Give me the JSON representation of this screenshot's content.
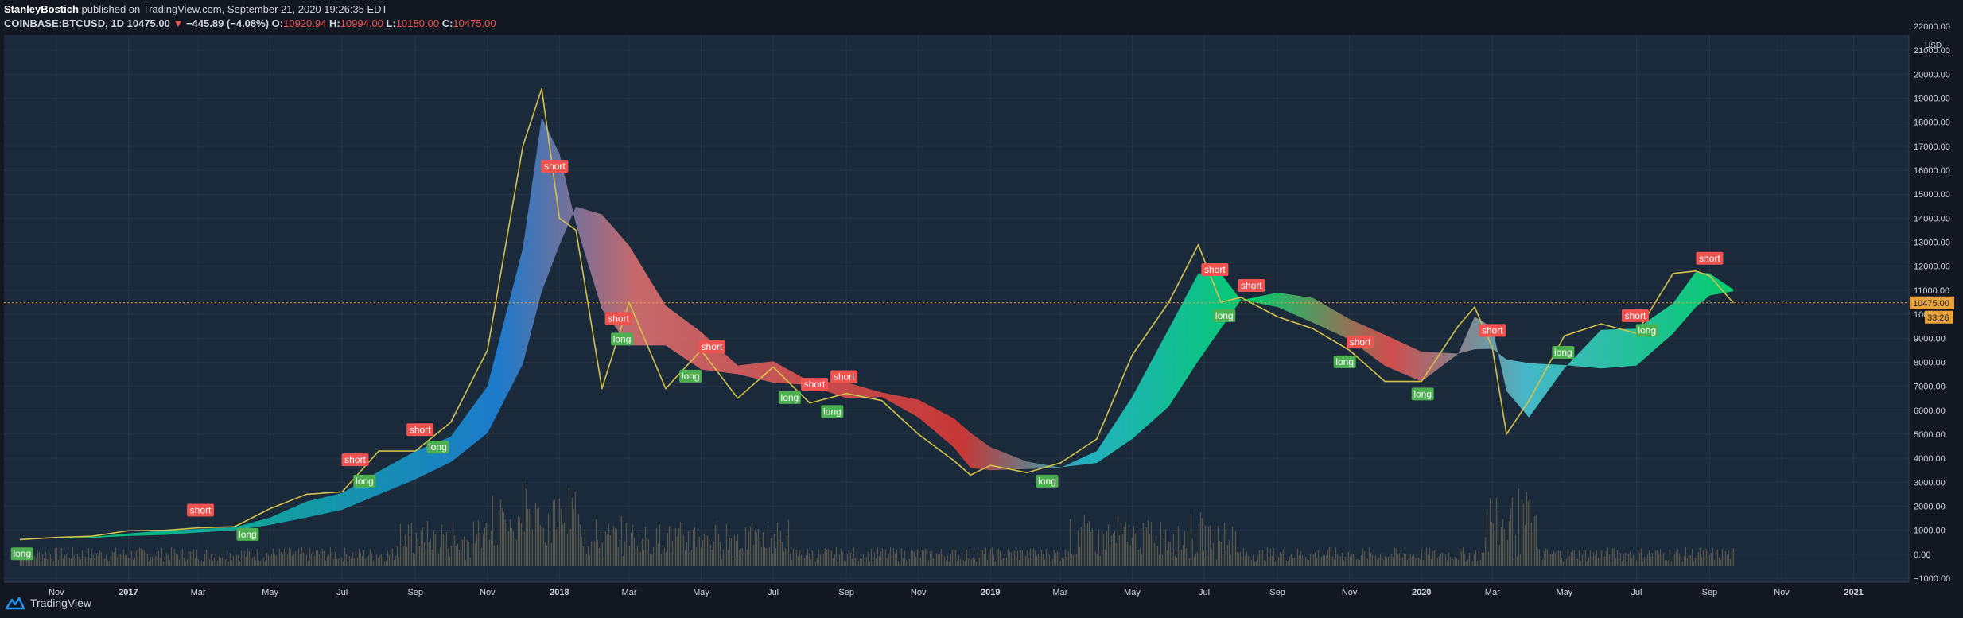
{
  "header": {
    "author": "StanleyBostich",
    "published_text": " published on TradingView.com, September 21, 2020 19:26:35 EDT",
    "symbol": "COINBASE:BTCUSD, 1D",
    "last": "10475.00",
    "change_arrow": "▼",
    "change": "−445.89 (−4.08%)",
    "o_label": "O:",
    "o": "10920.94",
    "h_label": "H:",
    "h": "10994.00",
    "l_label": "L:",
    "l": "10180.00",
    "c_label": "C:",
    "c": "10475.00"
  },
  "price_scale": {
    "currency": "USD",
    "ticks": [
      "22000.00",
      "21000.00",
      "20000.00",
      "19000.00",
      "18000.00",
      "17000.00",
      "16000.00",
      "15000.00",
      "14000.00",
      "13000.00",
      "12000.00",
      "11000.00",
      "10000.00",
      "9000.00",
      "8000.00",
      "7000.00",
      "6000.00",
      "5000.00",
      "4000.00",
      "3000.00",
      "2000.00",
      "1000.00",
      "0.00",
      "−1000.00"
    ],
    "last_price_label": "10475.00",
    "countdown": "33:26"
  },
  "time_scale": {
    "ticks": [
      {
        "label": "Nov",
        "bold": false
      },
      {
        "label": "2017",
        "bold": true
      },
      {
        "label": "Mar",
        "bold": false
      },
      {
        "label": "May",
        "bold": false
      },
      {
        "label": "Jul",
        "bold": false
      },
      {
        "label": "Sep",
        "bold": false
      },
      {
        "label": "Nov",
        "bold": false
      },
      {
        "label": "2018",
        "bold": true
      },
      {
        "label": "Mar",
        "bold": false
      },
      {
        "label": "May",
        "bold": false
      },
      {
        "label": "Jul",
        "bold": false
      },
      {
        "label": "Sep",
        "bold": false
      },
      {
        "label": "Nov",
        "bold": false
      },
      {
        "label": "2019",
        "bold": true
      },
      {
        "label": "Mar",
        "bold": false
      },
      {
        "label": "May",
        "bold": false
      },
      {
        "label": "Jul",
        "bold": false
      },
      {
        "label": "Sep",
        "bold": false
      },
      {
        "label": "Nov",
        "bold": false
      },
      {
        "label": "2020",
        "bold": true
      },
      {
        "label": "Mar",
        "bold": false
      },
      {
        "label": "May",
        "bold": false
      },
      {
        "label": "Jul",
        "bold": false
      },
      {
        "label": "Sep",
        "bold": false
      },
      {
        "label": "Nov",
        "bold": false
      },
      {
        "label": "2021",
        "bold": true
      }
    ]
  },
  "footer": {
    "brand": "TradingView"
  },
  "colors": {
    "background": "#131722",
    "pane": "#1a2a3a",
    "grid": "#243548",
    "text": "#d1d4dc",
    "down": "#ef5350",
    "up": "#26a69a",
    "short": "#ef5350",
    "long": "#4caf50",
    "price_line": "#e8a33d",
    "volume": "#8b7d5a",
    "ribbon_fast": "#2ecc71",
    "ribbon_slow": "#1e88e5"
  },
  "chart_data": {
    "type": "line",
    "title": "",
    "xlabel": "",
    "ylabel": "USD",
    "ylim": [
      -1000,
      22000
    ],
    "grid": true,
    "x_dates": [
      "2016-10-01",
      "2016-11-01",
      "2016-12-01",
      "2017-01-01",
      "2017-02-01",
      "2017-03-01",
      "2017-04-01",
      "2017-05-01",
      "2017-06-01",
      "2017-07-01",
      "2017-08-01",
      "2017-09-01",
      "2017-10-01",
      "2017-11-01",
      "2017-12-01",
      "2017-12-17",
      "2018-01-01",
      "2018-01-15",
      "2018-02-06",
      "2018-03-01",
      "2018-04-01",
      "2018-05-01",
      "2018-06-01",
      "2018-07-01",
      "2018-08-01",
      "2018-09-01",
      "2018-10-01",
      "2018-11-01",
      "2018-12-01",
      "2018-12-15",
      "2019-01-01",
      "2019-02-01",
      "2019-03-01",
      "2019-04-01",
      "2019-05-01",
      "2019-06-01",
      "2019-06-26",
      "2019-07-15",
      "2019-08-01",
      "2019-09-01",
      "2019-10-01",
      "2019-11-01",
      "2019-12-01",
      "2020-01-01",
      "2020-02-01",
      "2020-02-15",
      "2020-03-01",
      "2020-03-13",
      "2020-04-01",
      "2020-05-01",
      "2020-06-01",
      "2020-07-01",
      "2020-08-01",
      "2020-08-20",
      "2020-09-01",
      "2020-09-21"
    ],
    "series": [
      {
        "values": [
          610,
          700,
          750,
          980,
          1000,
          1100,
          1150,
          1900,
          2500,
          2600,
          4300,
          4300,
          5500,
          8500,
          17000,
          19400,
          14000,
          13500,
          6900,
          10500,
          6900,
          8500,
          6500,
          7800,
          6300,
          6700,
          6400,
          5000,
          3900,
          3300,
          3700,
          3400,
          3800,
          4800,
          8300,
          10500,
          12900,
          10500,
          10700,
          9900,
          9400,
          8500,
          7200,
          7200,
          9500,
          10300,
          8600,
          5000,
          6400,
          9100,
          9600,
          9200,
          11700,
          11800,
          11600,
          10475
        ]
      }
    ],
    "signals": [
      {
        "type": "long",
        "date": "2016-10-03",
        "label": "long"
      },
      {
        "type": "short",
        "date": "2017-03-03",
        "label": "short"
      },
      {
        "type": "long",
        "date": "2017-04-12",
        "label": "long"
      },
      {
        "type": "short",
        "date": "2017-07-12",
        "label": "short"
      },
      {
        "type": "long",
        "date": "2017-07-20",
        "label": "long"
      },
      {
        "type": "short",
        "date": "2017-09-05",
        "label": "short"
      },
      {
        "type": "long",
        "date": "2017-09-20",
        "label": "long"
      },
      {
        "type": "short",
        "date": "2017-12-28",
        "label": "short"
      },
      {
        "type": "short",
        "date": "2018-02-20",
        "label": "short"
      },
      {
        "type": "long",
        "date": "2018-02-23",
        "label": "long"
      },
      {
        "type": "long",
        "date": "2018-04-22",
        "label": "long"
      },
      {
        "type": "short",
        "date": "2018-05-10",
        "label": "short"
      },
      {
        "type": "long",
        "date": "2018-07-15",
        "label": "long"
      },
      {
        "type": "short",
        "date": "2018-08-05",
        "label": "short"
      },
      {
        "type": "long",
        "date": "2018-08-20",
        "label": "long"
      },
      {
        "type": "short",
        "date": "2018-08-30",
        "label": "short"
      },
      {
        "type": "long",
        "date": "2019-02-18",
        "label": "long"
      },
      {
        "type": "short",
        "date": "2019-07-10",
        "label": "short"
      },
      {
        "type": "long",
        "date": "2019-07-18",
        "label": "long"
      },
      {
        "type": "short",
        "date": "2019-08-10",
        "label": "short"
      },
      {
        "type": "long",
        "date": "2019-10-28",
        "label": "long"
      },
      {
        "type": "short",
        "date": "2019-11-10",
        "label": "short"
      },
      {
        "type": "long",
        "date": "2020-01-02",
        "label": "long"
      },
      {
        "type": "short",
        "date": "2020-03-01",
        "label": "short"
      },
      {
        "type": "long",
        "date": "2020-04-30",
        "label": "long"
      },
      {
        "type": "short",
        "date": "2020-06-30",
        "label": "short"
      },
      {
        "type": "long",
        "date": "2020-07-10",
        "label": "long"
      },
      {
        "type": "short",
        "date": "2020-09-01",
        "label": "short"
      }
    ]
  }
}
